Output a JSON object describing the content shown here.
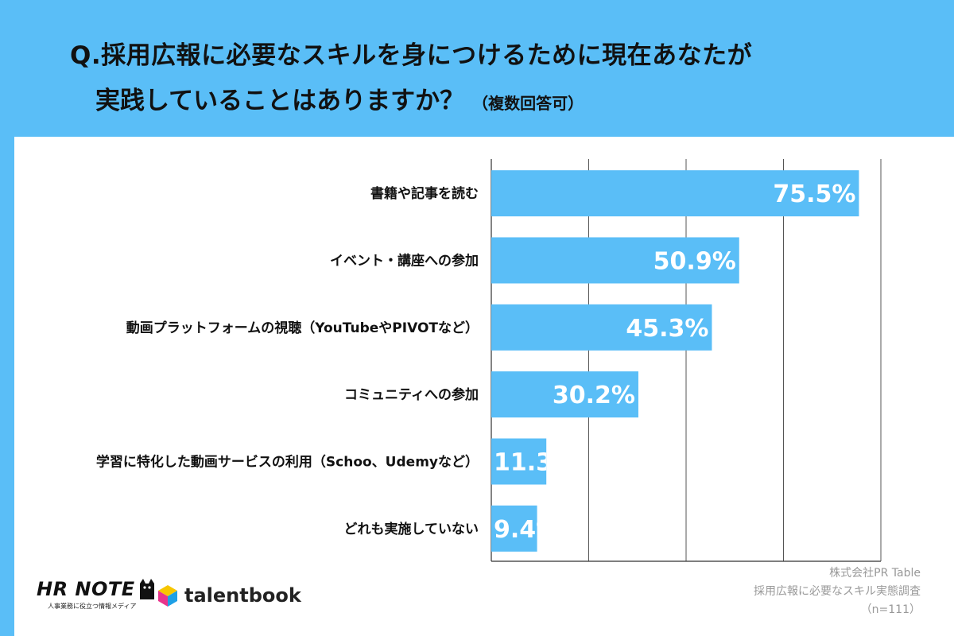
{
  "title": {
    "line1": "Q.採用広報に必要なスキルを身につけるために現在あなたが",
    "line2": "実践していることはありますか？",
    "note": "（複数回答可）"
  },
  "chart_data": {
    "type": "bar",
    "orientation": "horizontal",
    "categories": [
      "書籍や記事を読む",
      "イベント・講座への参加",
      "動画プラットフォームの視聴（YouTubeやPIVOTなど）",
      "コミュニティへの参加",
      "学習に特化した動画サービスの利用（Schoo、Udemyなど）",
      "どれも実施していない"
    ],
    "values": [
      75.5,
      50.9,
      45.3,
      30.2,
      11.3,
      9.4
    ],
    "value_labels": [
      "75.5%",
      "50.9%",
      "45.3%",
      "30.2%",
      "11.3%",
      "9.4%"
    ],
    "xlim": [
      0,
      80
    ],
    "grid": true,
    "bar_color": "#5ABEF7"
  },
  "footer": {
    "hr_note_title": "HR NOTE",
    "hr_note_sub": "人事業務に役立つ情報メディア",
    "talentbook": "talentbook",
    "credit_line1": "株式会社PR Table",
    "credit_line2": "採用広報に必要なスキル実態調査",
    "credit_line3": "（n=111）"
  },
  "colors": {
    "background": "#5ABEF7",
    "bar": "#5ABEF7",
    "grid": "#555555"
  }
}
